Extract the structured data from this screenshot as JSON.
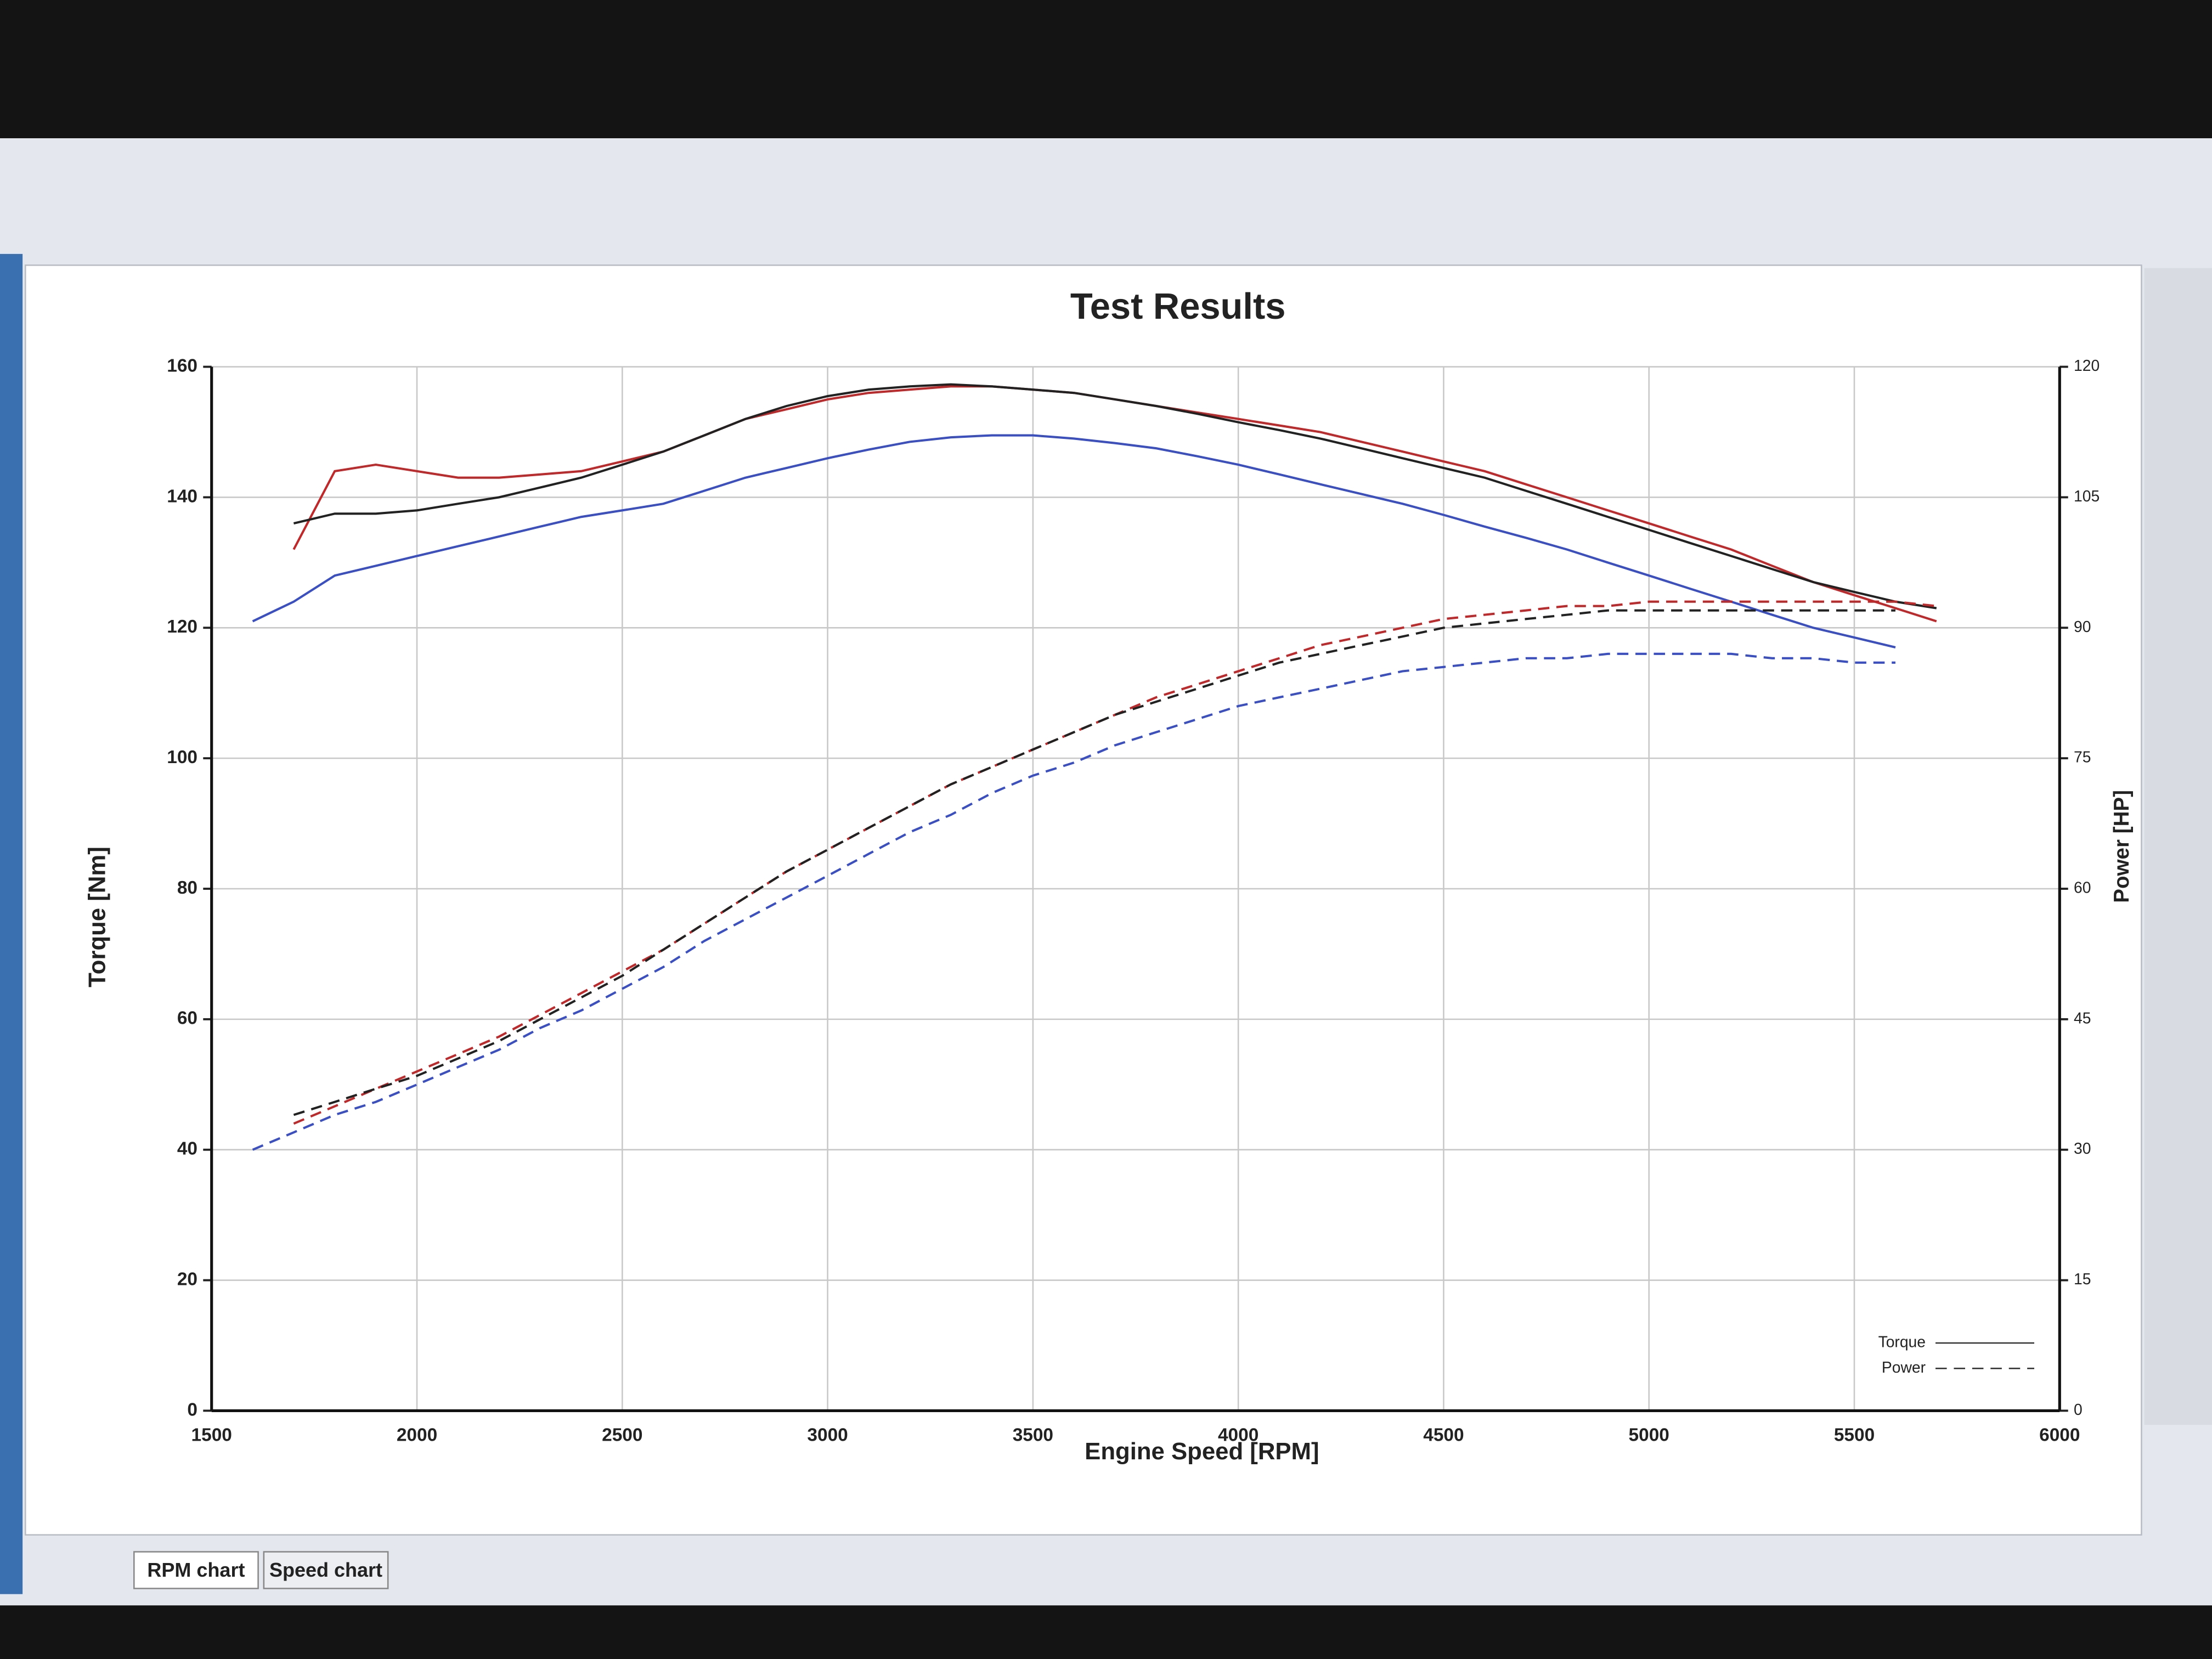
{
  "chart_data": {
    "type": "line",
    "title": "Test Results",
    "x_label": "Engine Speed [RPM]",
    "y_label": "Torque [Nm]",
    "y2_label": "Power [HP]",
    "x": [
      1600,
      1700,
      1800,
      1900,
      2000,
      2100,
      2200,
      2300,
      2400,
      2500,
      2600,
      2700,
      2800,
      2900,
      3000,
      3100,
      3200,
      3300,
      3400,
      3500,
      3600,
      3700,
      3800,
      3900,
      4000,
      4100,
      4200,
      4300,
      4400,
      4500,
      4600,
      4700,
      4800,
      4900,
      5000,
      5100,
      5200,
      5300,
      5400,
      5500,
      5600,
      5700
    ],
    "xlim": [
      1500,
      6000
    ],
    "xticks": [
      1500,
      2000,
      2500,
      3000,
      3500,
      4000,
      4500,
      5000,
      5500,
      6000
    ],
    "ylim": [
      0,
      160
    ],
    "yticks": [
      0,
      20,
      40,
      60,
      80,
      100,
      120,
      140,
      160
    ],
    "y2lim": [
      0,
      120
    ],
    "y2ticks": [
      0,
      15,
      30,
      45,
      60,
      75,
      90,
      105,
      120
    ],
    "grid": true,
    "legend": [
      {
        "label": "Torque",
        "dash": "solid"
      },
      {
        "label": "Power",
        "dash": "dashed"
      }
    ],
    "series": [
      {
        "color": "#c0282a",
        "axis": "y",
        "dash": "solid",
        "values": [
          null,
          132,
          144,
          145,
          144,
          143,
          143,
          143.5,
          144,
          145.5,
          147,
          149.5,
          152,
          153.5,
          155,
          156,
          156.5,
          157,
          157,
          156.5,
          156,
          155,
          154,
          153,
          152,
          151,
          150,
          148.5,
          147,
          145.5,
          144,
          142,
          140,
          138,
          136,
          134,
          132,
          129.5,
          127,
          125,
          123,
          121
        ]
      },
      {
        "color": "#222222",
        "axis": "y",
        "dash": "solid",
        "values": [
          null,
          136,
          137.5,
          137.5,
          138,
          139,
          140,
          141.5,
          143,
          145,
          147,
          149.5,
          152,
          154,
          155.5,
          156.5,
          157,
          157.3,
          157,
          156.5,
          156,
          155,
          154,
          152.8,
          151.5,
          150.3,
          149,
          147.5,
          146,
          144.5,
          143,
          141,
          139,
          137,
          135,
          133,
          131,
          129,
          127,
          125.5,
          124,
          123
        ]
      },
      {
        "color": "#3a4fc4",
        "axis": "y",
        "dash": "solid",
        "values": [
          121,
          124,
          128,
          129.5,
          131,
          132.5,
          134,
          135.5,
          137,
          138,
          139,
          141,
          143,
          144.5,
          146,
          147.3,
          148.5,
          149.2,
          149.5,
          149.5,
          149,
          148.3,
          147.5,
          146.3,
          145,
          143.5,
          142,
          140.5,
          139,
          137.3,
          135.5,
          133.8,
          132,
          130,
          128,
          126,
          124,
          122,
          120,
          118.5,
          117,
          null
        ]
      },
      {
        "color": "#c0282a",
        "axis": "y2",
        "dash": "dashed",
        "values": [
          null,
          33,
          35,
          37,
          39,
          41,
          43,
          45.5,
          48,
          50.5,
          53,
          56,
          59,
          62,
          64.5,
          67,
          69.5,
          72,
          74,
          76,
          78,
          80,
          82,
          83.5,
          85,
          86.5,
          88,
          89,
          90,
          91,
          91.5,
          92,
          92.5,
          92.5,
          93,
          93,
          93,
          93,
          93,
          93,
          93,
          92.5
        ]
      },
      {
        "color": "#222222",
        "axis": "y2",
        "dash": "dashed",
        "values": [
          null,
          34,
          35.5,
          37,
          38.5,
          40.5,
          42.5,
          45,
          47.5,
          50,
          53,
          56,
          59,
          62,
          64.5,
          67,
          69.5,
          72,
          74,
          76,
          78,
          80,
          81.5,
          83,
          84.5,
          86,
          87,
          88,
          89,
          90,
          90.5,
          91,
          91.5,
          92,
          92,
          92,
          92,
          92,
          92,
          92,
          92,
          null
        ]
      },
      {
        "color": "#3a4fc4",
        "axis": "y2",
        "dash": "dashed",
        "values": [
          30,
          32,
          34,
          35.5,
          37.5,
          39.5,
          41.5,
          44,
          46,
          48.5,
          51,
          54,
          56.5,
          59,
          61.5,
          64,
          66.5,
          68.5,
          71,
          73,
          74.5,
          76.5,
          78,
          79.5,
          81,
          82,
          83,
          84,
          85,
          85.5,
          86,
          86.5,
          86.5,
          87,
          87,
          87,
          87,
          86.5,
          86.5,
          86,
          86,
          null
        ]
      }
    ]
  },
  "tabs": [
    "RPM chart",
    "Speed chart"
  ]
}
